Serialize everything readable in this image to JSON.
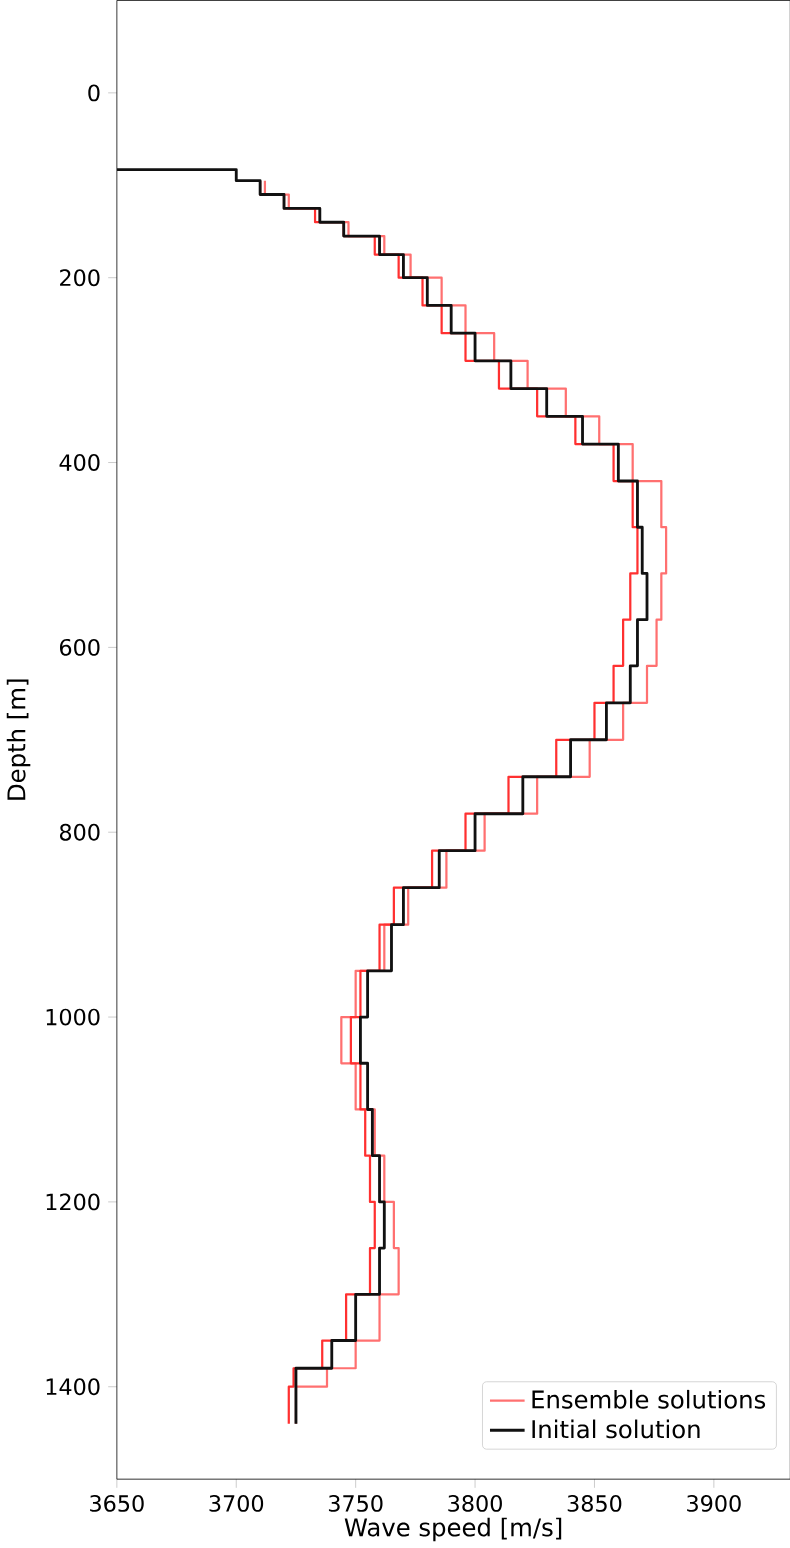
{
  "chart_data": {
    "type": "step",
    "xlabel": "Wave speed [m/s]",
    "ylabel": "Depth [m]",
    "xlim": [
      3650,
      3932
    ],
    "ylim": [
      1500,
      -100
    ],
    "xticks": [
      3650,
      3700,
      3750,
      3800,
      3850,
      3900
    ],
    "yticks": [
      0,
      200,
      400,
      600,
      800,
      1000,
      1200,
      1400
    ],
    "legend": "bottom right",
    "grid": false,
    "series": [
      {
        "name": "Ensemble solutions",
        "color": "#ff7070",
        "x": [
          null,
          null,
          3712,
          3722,
          3735,
          3747,
          3762,
          3773,
          3786,
          3796,
          3808,
          3822,
          3838,
          3852,
          3866,
          3878,
          3880,
          3878,
          3876,
          3872,
          3862,
          3848,
          3826,
          3804,
          3788,
          3772,
          3762,
          3750,
          3744,
          3750,
          3758,
          3762,
          3766,
          3768,
          3760,
          3750,
          3738,
          3725,
          3725
        ],
        "values": [
          null,
          null,
          95,
          110,
          125,
          140,
          155,
          175,
          200,
          230,
          260,
          290,
          320,
          350,
          380,
          420,
          470,
          520,
          570,
          620,
          660,
          700,
          740,
          780,
          820,
          860,
          900,
          950,
          1000,
          1050,
          1100,
          1150,
          1200,
          1250,
          1300,
          1350,
          1380,
          1400,
          1440
        ]
      },
      {
        "color": "#ff3030",
        "x": [
          null,
          null,
          3710,
          3720,
          3733,
          3745,
          3758,
          3768,
          3778,
          3786,
          3796,
          3810,
          3826,
          3842,
          3858,
          3866,
          3868,
          3865,
          3862,
          3858,
          3850,
          3834,
          3814,
          3796,
          3782,
          3766,
          3760,
          3752,
          3748,
          3752,
          3754,
          3756,
          3758,
          3756,
          3746,
          3736,
          3724,
          3722,
          3722
        ],
        "values": [
          null,
          null,
          95,
          110,
          125,
          140,
          155,
          175,
          200,
          230,
          260,
          290,
          320,
          350,
          380,
          420,
          470,
          520,
          570,
          620,
          660,
          700,
          740,
          780,
          820,
          860,
          900,
          950,
          1000,
          1050,
          1100,
          1150,
          1200,
          1250,
          1300,
          1350,
          1380,
          1400,
          1440
        ]
      },
      {
        "name": "Initial solution",
        "color": "#111111",
        "x": [
          3650,
          3700,
          3710,
          3720,
          3735,
          3745,
          3760,
          3770,
          3780,
          3790,
          3800,
          3815,
          3830,
          3845,
          3860,
          3868,
          3870,
          3872,
          3868,
          3865,
          3855,
          3840,
          3820,
          3800,
          3785,
          3770,
          3765,
          3755,
          3752,
          3755,
          3757,
          3760,
          3762,
          3760,
          3750,
          3740,
          3725,
          3725
        ],
        "values": [
          83,
          83,
          95,
          110,
          125,
          140,
          155,
          175,
          200,
          230,
          260,
          290,
          320,
          350,
          380,
          420,
          470,
          520,
          570,
          620,
          660,
          700,
          740,
          780,
          820,
          860,
          900,
          950,
          1000,
          1050,
          1100,
          1150,
          1200,
          1250,
          1300,
          1350,
          1380,
          1440
        ]
      }
    ]
  }
}
